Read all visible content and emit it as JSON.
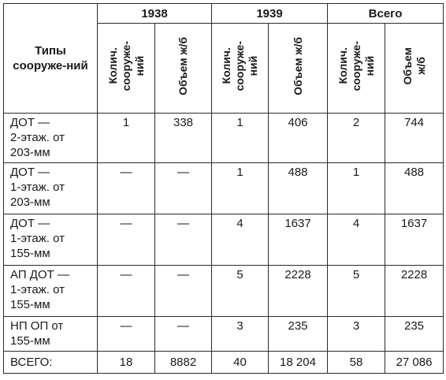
{
  "table": {
    "years": [
      "1938",
      "1939",
      "Всего"
    ],
    "type_header": "Типы сооруже-ний",
    "sub_headers": {
      "count": "Колич.\nсооруже-\nний",
      "volume_1938": "Объем ж/б",
      "volume_1939": "Объем ж/б",
      "volume_total": "Объем\nж/б"
    },
    "rows": [
      {
        "name": "ДОТ —\n2-этаж. от\n203-мм",
        "c1938": "1",
        "v1938": "338",
        "c1939": "1",
        "v1939": "406",
        "ctotal": "2",
        "vtotal": "744"
      },
      {
        "name": "ДОТ —\n1-этаж. от\n203-мм",
        "c1938": "—",
        "v1938": "—",
        "c1939": "1",
        "v1939": "488",
        "ctotal": "1",
        "vtotal": "488"
      },
      {
        "name": "ДОТ —\n1-этаж. от\n155-мм",
        "c1938": "—",
        "v1938": "—",
        "c1939": "4",
        "v1939": "1637",
        "ctotal": "4",
        "vtotal": "1637"
      },
      {
        "name": "АП ДОТ —\n1-этаж. от\n155-мм",
        "c1938": "—",
        "v1938": "—",
        "c1939": "5",
        "v1939": "2228",
        "ctotal": "5",
        "vtotal": "2228"
      },
      {
        "name": "НП ОП от\n155-мм",
        "c1938": "—",
        "v1938": "—",
        "c1939": "3",
        "v1939": "235",
        "ctotal": "3",
        "vtotal": "235"
      },
      {
        "name": "ВСЕГО:",
        "c1938": "18",
        "v1938": "8882",
        "c1939": "40",
        "v1939": "18 204",
        "ctotal": "58",
        "vtotal": "27 086"
      }
    ]
  }
}
